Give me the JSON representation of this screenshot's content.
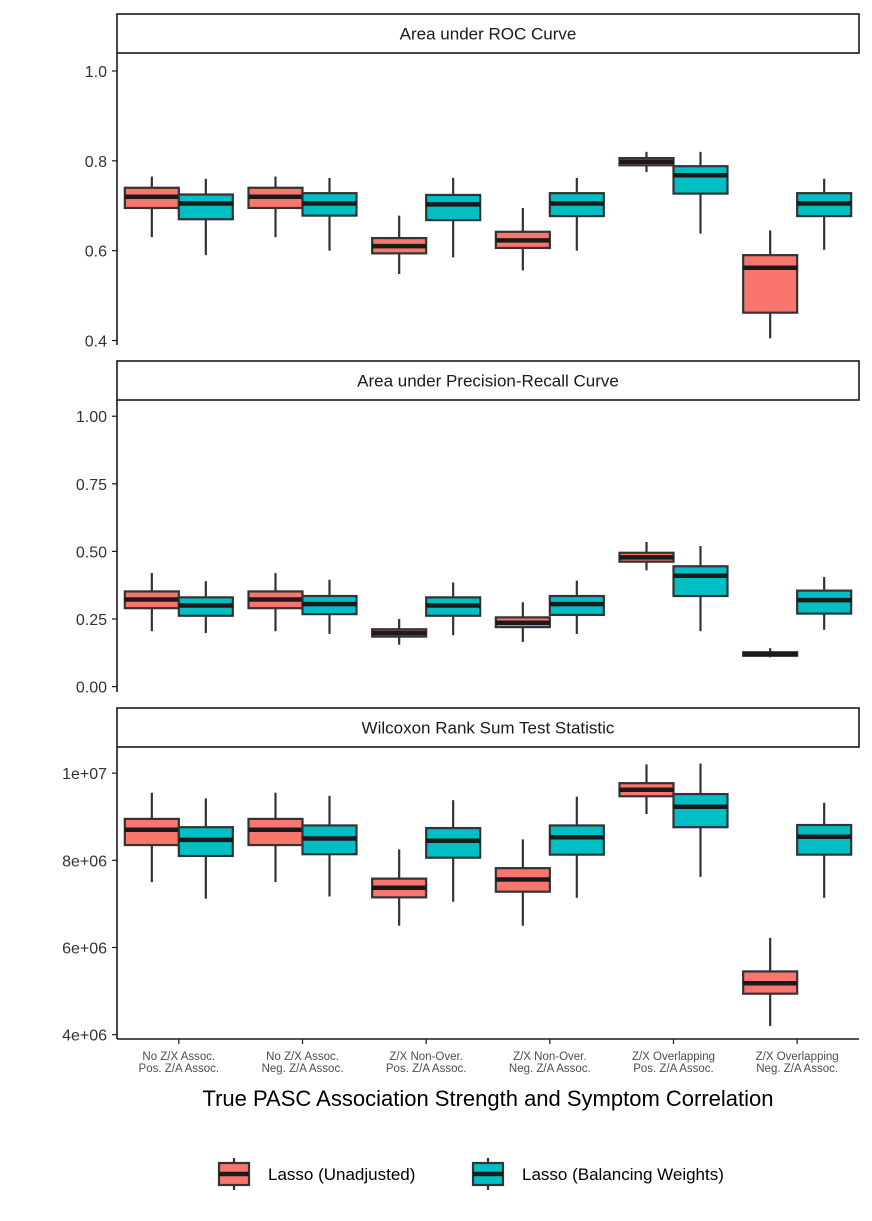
{
  "chart_data": {
    "type": "boxplot",
    "xlabel": "True PASC Association Strength and Symptom Correlation",
    "categories": [
      [
        "No Z/X Assoc.",
        "Pos. Z/A Assoc."
      ],
      [
        "No Z/X Assoc.",
        "Neg. Z/A Assoc."
      ],
      [
        "Z/X Non-Over.",
        "Pos. Z/A Assoc."
      ],
      [
        "Z/X Non-Over.",
        "Neg. Z/A Assoc."
      ],
      [
        "Z/X Overlapping",
        "Pos. Z/A Assoc."
      ],
      [
        "Z/X Overlapping",
        "Neg. Z/A Assoc."
      ]
    ],
    "series": [
      {
        "name": "Lasso (Unadjusted)",
        "color": "#F8766D"
      },
      {
        "name": "Lasso (Balancing Weights)",
        "color": "#00BFC4"
      }
    ],
    "legend": {
      "position": "bottom",
      "items": [
        "Lasso (Unadjusted)",
        "Lasso (Balancing Weights)"
      ]
    },
    "panels": [
      {
        "title": "Area under ROC Curve",
        "ylim": [
          0.39,
          1.04
        ],
        "ticks": [
          0.4,
          0.6,
          0.8,
          1.0
        ],
        "tick_labels": [
          "0.4",
          "0.6",
          "0.8",
          "1.0"
        ],
        "boxes": [
          [
            [
              0.63,
              0.695,
              0.72,
              0.74,
              0.765
            ],
            [
              0.59,
              0.67,
              0.705,
              0.725,
              0.76
            ]
          ],
          [
            [
              0.63,
              0.695,
              0.72,
              0.74,
              0.765
            ],
            [
              0.6,
              0.678,
              0.705,
              0.728,
              0.762
            ]
          ],
          [
            [
              0.548,
              0.594,
              0.61,
              0.628,
              0.678
            ],
            [
              0.585,
              0.668,
              0.703,
              0.724,
              0.762
            ]
          ],
          [
            [
              0.556,
              0.606,
              0.623,
              0.642,
              0.695
            ],
            [
              0.6,
              0.677,
              0.705,
              0.728,
              0.762
            ]
          ],
          [
            [
              0.775,
              0.79,
              0.798,
              0.806,
              0.82
            ],
            [
              0.638,
              0.727,
              0.768,
              0.788,
              0.82
            ]
          ],
          [
            [
              0.405,
              0.462,
              0.562,
              0.59,
              0.645
            ],
            [
              0.602,
              0.677,
              0.705,
              0.728,
              0.76
            ]
          ]
        ]
      },
      {
        "title": "Area under Precision-Recall Curve",
        "ylim": [
          -0.02,
          1.06
        ],
        "ticks": [
          0.0,
          0.25,
          0.5,
          0.75,
          1.0
        ],
        "tick_labels": [
          "0.00",
          "0.25",
          "0.50",
          "0.75",
          "1.00"
        ],
        "boxes": [
          [
            [
              0.205,
              0.29,
              0.322,
              0.352,
              0.42
            ],
            [
              0.198,
              0.262,
              0.3,
              0.33,
              0.39
            ]
          ],
          [
            [
              0.205,
              0.29,
              0.322,
              0.352,
              0.42
            ],
            [
              0.195,
              0.268,
              0.305,
              0.335,
              0.395
            ]
          ],
          [
            [
              0.155,
              0.185,
              0.198,
              0.212,
              0.25
            ],
            [
              0.19,
              0.262,
              0.3,
              0.33,
              0.385
            ]
          ],
          [
            [
              0.165,
              0.22,
              0.236,
              0.256,
              0.312
            ],
            [
              0.195,
              0.265,
              0.305,
              0.335,
              0.392
            ]
          ],
          [
            [
              0.43,
              0.462,
              0.478,
              0.495,
              0.535
            ],
            [
              0.205,
              0.335,
              0.41,
              0.445,
              0.52
            ]
          ],
          [
            [
              0.108,
              0.114,
              0.12,
              0.127,
              0.142
            ],
            [
              0.21,
              0.27,
              0.32,
              0.355,
              0.405
            ]
          ]
        ]
      },
      {
        "title": "Wilcoxon Rank Sum Test Statistic",
        "ylim": [
          3900000,
          10600000
        ],
        "ticks": [
          4000000,
          6000000,
          8000000,
          10000000
        ],
        "tick_labels": [
          "4e+06",
          "6e+06",
          "8e+06",
          "1e+07"
        ],
        "boxes": [
          [
            [
              7500000,
              8350000,
              8700000,
              8950000,
              9550000
            ],
            [
              7120000,
              8100000,
              8470000,
              8760000,
              9420000
            ]
          ],
          [
            [
              7500000,
              8350000,
              8700000,
              8950000,
              9550000
            ],
            [
              7170000,
              8140000,
              8500000,
              8800000,
              9480000
            ]
          ],
          [
            [
              6500000,
              7150000,
              7370000,
              7580000,
              8250000
            ],
            [
              7050000,
              8060000,
              8450000,
              8740000,
              9380000
            ]
          ],
          [
            [
              6500000,
              7280000,
              7560000,
              7820000,
              8480000
            ],
            [
              7140000,
              8130000,
              8530000,
              8800000,
              9460000
            ]
          ],
          [
            [
              9060000,
              9470000,
              9620000,
              9770000,
              10200000
            ],
            [
              7620000,
              8760000,
              9230000,
              9520000,
              10220000
            ]
          ],
          [
            [
              4200000,
              4940000,
              5180000,
              5450000,
              6220000
            ],
            [
              7140000,
              8130000,
              8540000,
              8810000,
              9320000
            ]
          ]
        ]
      }
    ]
  }
}
